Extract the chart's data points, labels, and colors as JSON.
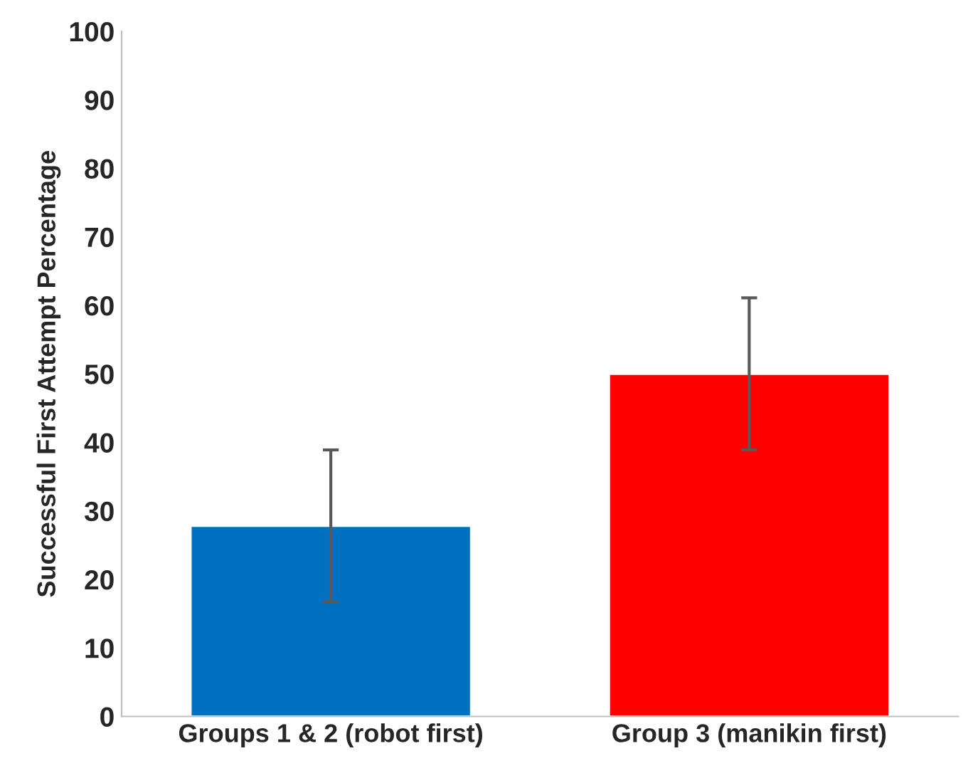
{
  "chart_data": {
    "type": "bar",
    "ylabel": "Successful First Attempt Percentage",
    "categories": [
      "Groups 1 & 2 (robot first)",
      "Group 3 (manikin first)"
    ],
    "values": [
      27.8,
      50
    ],
    "colors": [
      "#0070c0",
      "#ff0000"
    ],
    "errors": [
      11.1,
      11.1
    ],
    "ylim": [
      0,
      100
    ],
    "yticks": [
      0,
      10,
      20,
      30,
      40,
      50,
      60,
      70,
      80,
      90,
      100
    ],
    "grid": false
  }
}
